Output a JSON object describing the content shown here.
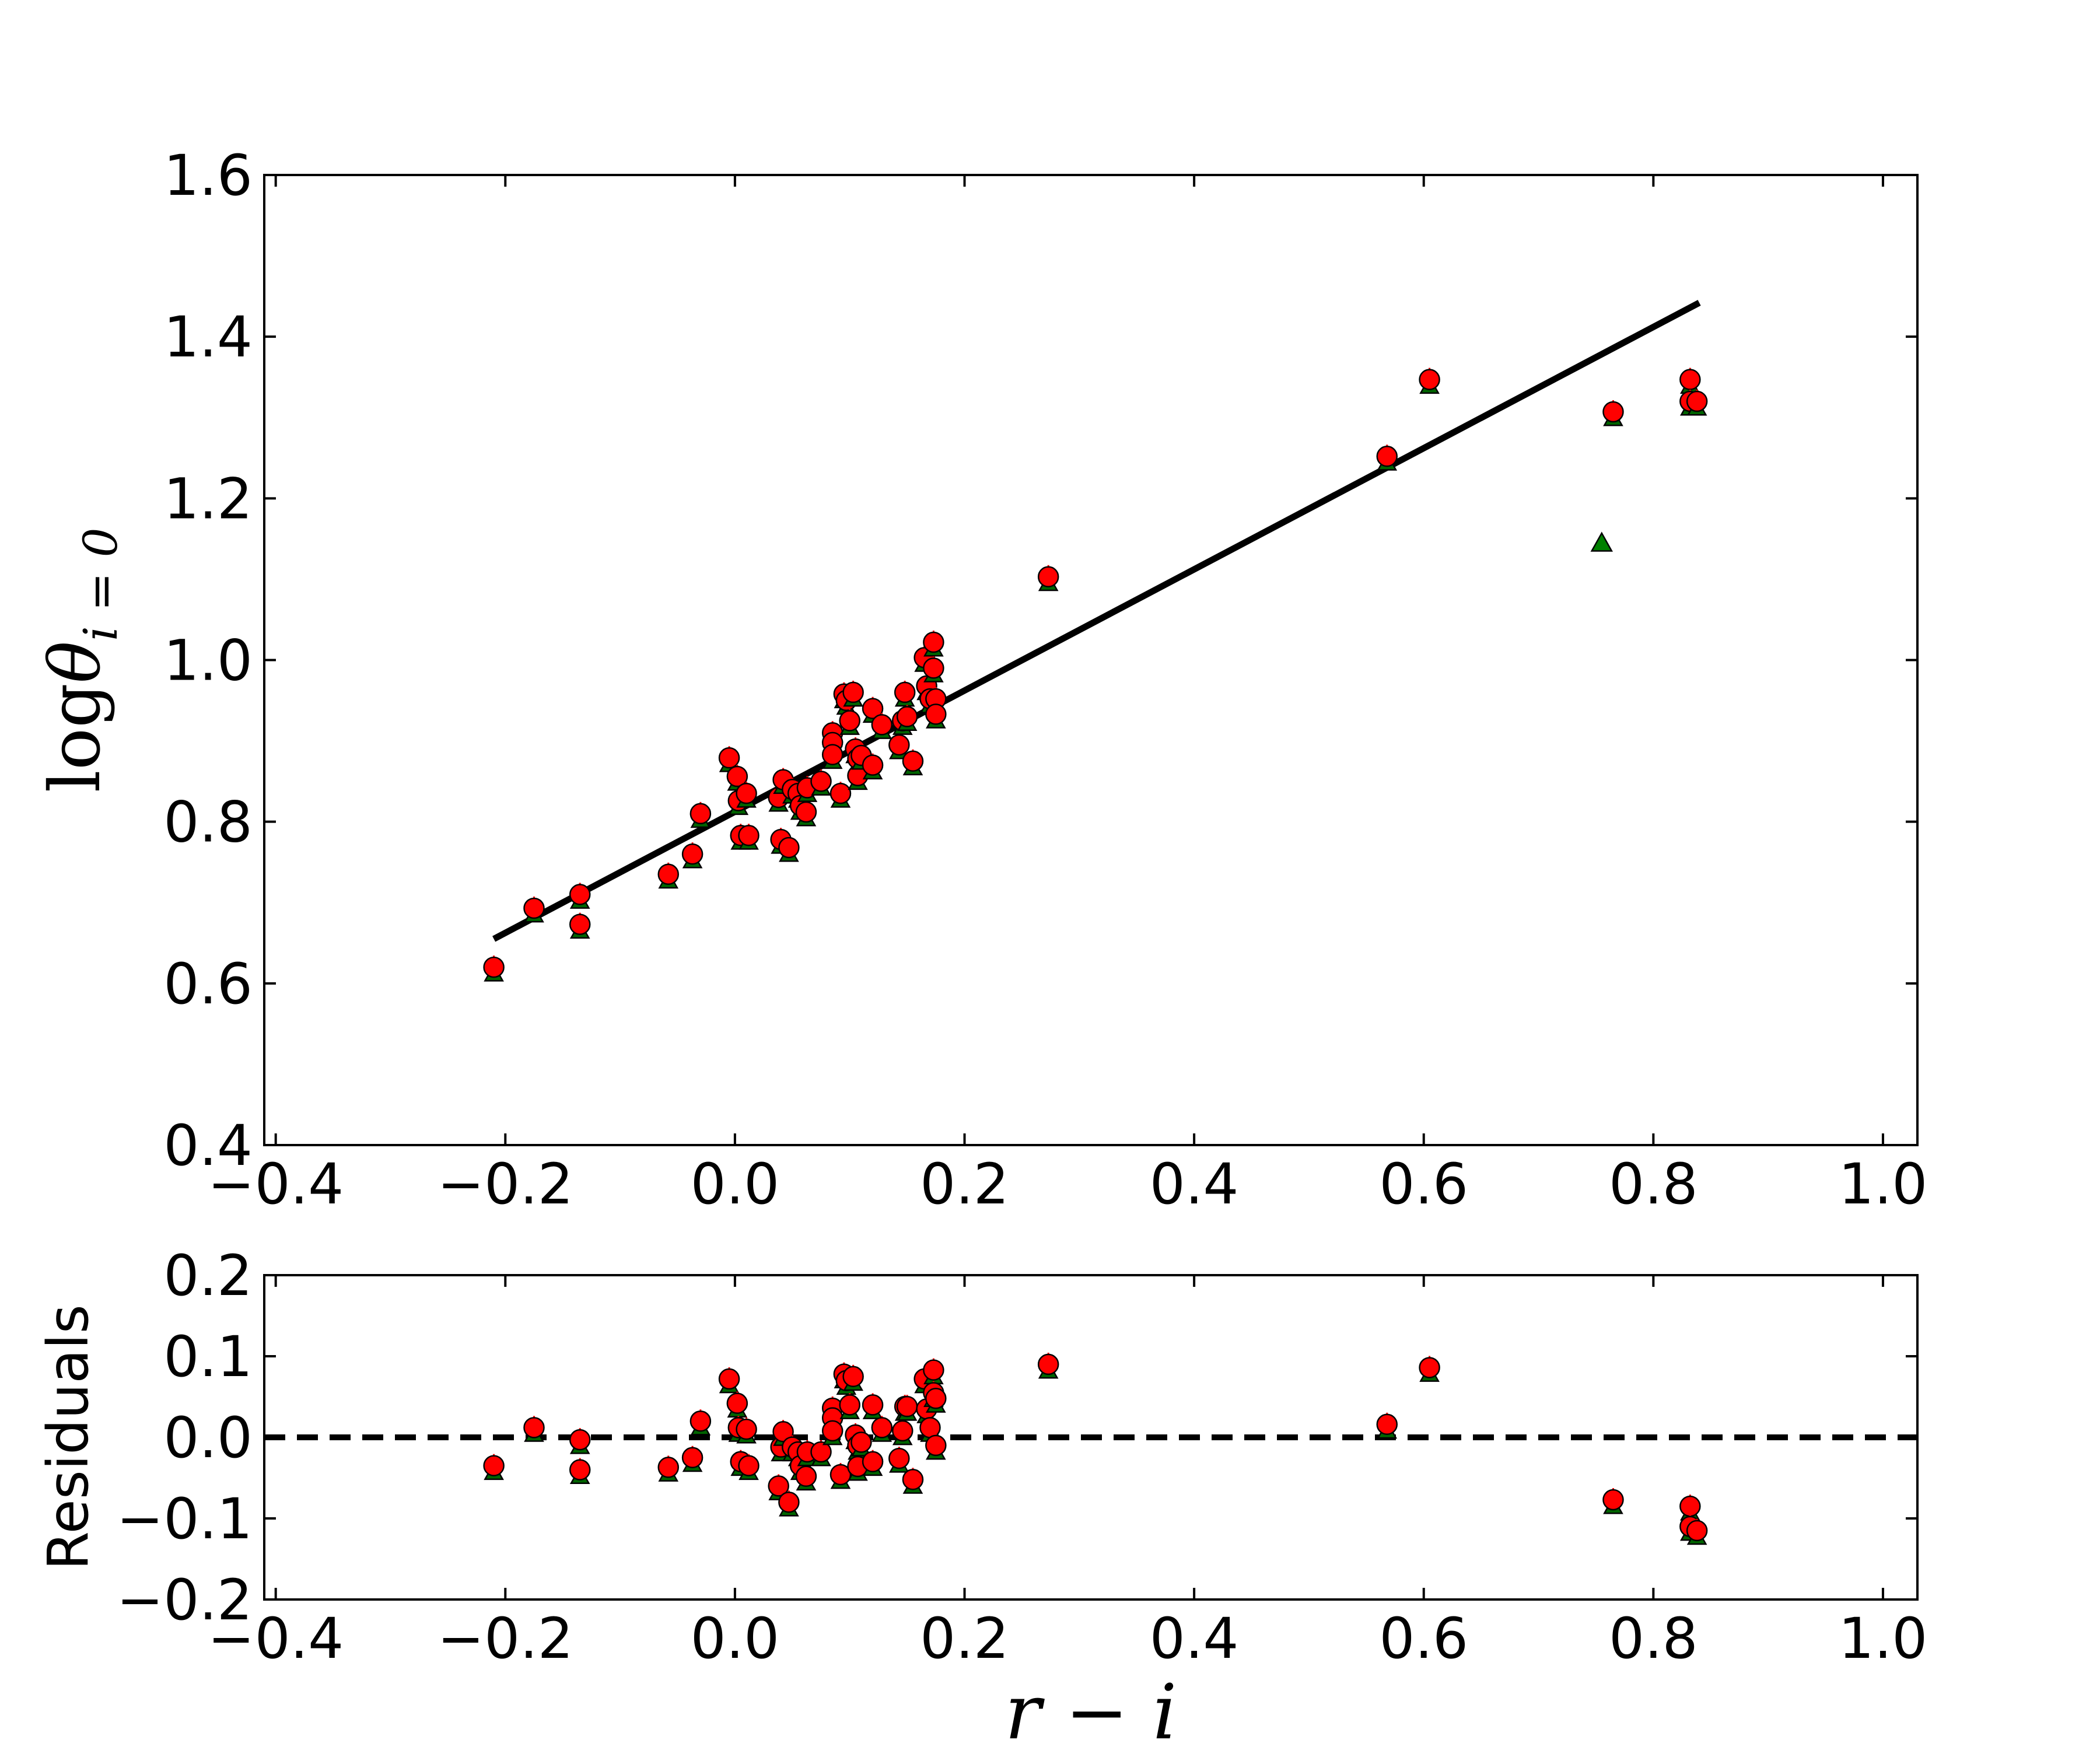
{
  "chart_data": [
    {
      "type": "scatter",
      "panel": "main",
      "xlabel": "r − i",
      "ylabel": {
        "prefix": "log",
        "symbol": "θ",
        "subscript": "i = 0"
      },
      "xlim": [
        -0.41,
        1.03
      ],
      "ylim": [
        0.4,
        1.6
      ],
      "xticks": [
        "−0.4",
        "−0.2",
        "0.0",
        "0.2",
        "0.4",
        "0.6",
        "0.8",
        "1.0"
      ],
      "yticks": [
        "0.4",
        "0.6",
        "0.8",
        "1.0",
        "1.2",
        "1.4",
        "1.6"
      ],
      "marker_color": "#ff0000",
      "marker_edge": "#000000",
      "triangle_color": "#008000",
      "fit_line": {
        "x": [
          -0.21,
          0.84
        ],
        "y": [
          0.655,
          1.442
        ],
        "color": "#000000"
      },
      "series": [
        {
          "marker": "circle",
          "points": [
            [
              -0.21,
              0.62
            ],
            [
              -0.175,
              0.693
            ],
            [
              -0.135,
              0.71
            ],
            [
              -0.135,
              0.673
            ],
            [
              -0.058,
              0.735
            ],
            [
              -0.037,
              0.76
            ],
            [
              -0.03,
              0.81
            ],
            [
              -0.005,
              0.879
            ],
            [
              0.002,
              0.856
            ],
            [
              0.003,
              0.826
            ],
            [
              0.005,
              0.783
            ],
            [
              0.01,
              0.835
            ],
            [
              0.012,
              0.783
            ],
            [
              0.038,
              0.83
            ],
            [
              0.04,
              0.778
            ],
            [
              0.042,
              0.852
            ],
            [
              0.047,
              0.768
            ],
            [
              0.05,
              0.84
            ],
            [
              0.055,
              0.835
            ],
            [
              0.057,
              0.82
            ],
            [
              0.062,
              0.812
            ],
            [
              0.063,
              0.842
            ],
            [
              0.075,
              0.85
            ],
            [
              0.085,
              0.91
            ],
            [
              0.085,
              0.898
            ],
            [
              0.085,
              0.883
            ],
            [
              0.092,
              0.835
            ],
            [
              0.095,
              0.958
            ],
            [
              0.097,
              0.95
            ],
            [
              0.1,
              0.925
            ],
            [
              0.103,
              0.96
            ],
            [
              0.105,
              0.89
            ],
            [
              0.107,
              0.878
            ],
            [
              0.107,
              0.857
            ],
            [
              0.11,
              0.882
            ],
            [
              0.12,
              0.94
            ],
            [
              0.12,
              0.87
            ],
            [
              0.128,
              0.92
            ],
            [
              0.143,
              0.895
            ],
            [
              0.146,
              0.925
            ],
            [
              0.148,
              0.96
            ],
            [
              0.15,
              0.93
            ],
            [
              0.155,
              0.875
            ],
            [
              0.165,
              1.003
            ],
            [
              0.167,
              0.968
            ],
            [
              0.17,
              0.952
            ],
            [
              0.173,
              1.022
            ],
            [
              0.173,
              0.99
            ],
            [
              0.175,
              0.952
            ],
            [
              0.175,
              0.933
            ],
            [
              0.273,
              1.103
            ],
            [
              0.568,
              1.252
            ],
            [
              0.605,
              1.347
            ],
            [
              0.765,
              1.307
            ],
            [
              0.832,
              1.347
            ],
            [
              0.832,
              1.32
            ],
            [
              0.838,
              1.32
            ]
          ]
        },
        {
          "marker": "triangle",
          "points": [
            [
              0.755,
              1.144
            ]
          ]
        }
      ]
    },
    {
      "type": "scatter",
      "panel": "residuals",
      "xlabel": "r − i",
      "ylabel": "Residuals",
      "xlim": [
        -0.41,
        1.03
      ],
      "ylim": [
        -0.2,
        0.2
      ],
      "xticks": [
        "−0.4",
        "−0.2",
        "0.0",
        "0.2",
        "0.4",
        "0.6",
        "0.8",
        "1.0"
      ],
      "yticks": [
        "0.2",
        "0.1",
        "0.0",
        "−0.1",
        "−0.2"
      ],
      "reference_line": {
        "y": 0.0,
        "style": "dashed",
        "color": "#000000"
      },
      "series": [
        {
          "marker": "circle",
          "points": [
            [
              -0.21,
              -0.035
            ],
            [
              -0.175,
              0.012
            ],
            [
              -0.135,
              -0.003
            ],
            [
              -0.135,
              -0.04
            ],
            [
              -0.058,
              -0.037
            ],
            [
              -0.037,
              -0.025
            ],
            [
              -0.03,
              0.02
            ],
            [
              -0.005,
              0.072
            ],
            [
              0.002,
              0.042
            ],
            [
              0.003,
              0.012
            ],
            [
              0.005,
              -0.03
            ],
            [
              0.01,
              0.01
            ],
            [
              0.012,
              -0.035
            ],
            [
              0.038,
              -0.06
            ],
            [
              0.04,
              -0.012
            ],
            [
              0.042,
              0.007
            ],
            [
              0.047,
              -0.08
            ],
            [
              0.05,
              -0.012
            ],
            [
              0.055,
              -0.018
            ],
            [
              0.057,
              -0.035
            ],
            [
              0.062,
              -0.048
            ],
            [
              0.063,
              -0.018
            ],
            [
              0.075,
              -0.018
            ],
            [
              0.085,
              0.036
            ],
            [
              0.085,
              0.024
            ],
            [
              0.085,
              0.008
            ],
            [
              0.092,
              -0.046
            ],
            [
              0.095,
              0.078
            ],
            [
              0.097,
              0.07
            ],
            [
              0.1,
              0.04
            ],
            [
              0.103,
              0.075
            ],
            [
              0.105,
              0.003
            ],
            [
              0.107,
              -0.01
            ],
            [
              0.107,
              -0.036
            ],
            [
              0.11,
              -0.006
            ],
            [
              0.12,
              0.04
            ],
            [
              0.12,
              -0.03
            ],
            [
              0.128,
              0.012
            ],
            [
              0.143,
              -0.026
            ],
            [
              0.146,
              0.008
            ],
            [
              0.148,
              0.038
            ],
            [
              0.15,
              0.038
            ],
            [
              0.155,
              -0.052
            ],
            [
              0.165,
              0.072
            ],
            [
              0.167,
              0.035
            ],
            [
              0.17,
              0.012
            ],
            [
              0.173,
              0.083
            ],
            [
              0.173,
              0.055
            ],
            [
              0.175,
              0.048
            ],
            [
              0.175,
              -0.01
            ],
            [
              0.273,
              0.09
            ],
            [
              0.568,
              0.016
            ],
            [
              0.605,
              0.086
            ],
            [
              0.765,
              -0.077
            ],
            [
              0.832,
              -0.085
            ],
            [
              0.832,
              -0.11
            ],
            [
              0.838,
              -0.115
            ]
          ]
        }
      ]
    }
  ]
}
